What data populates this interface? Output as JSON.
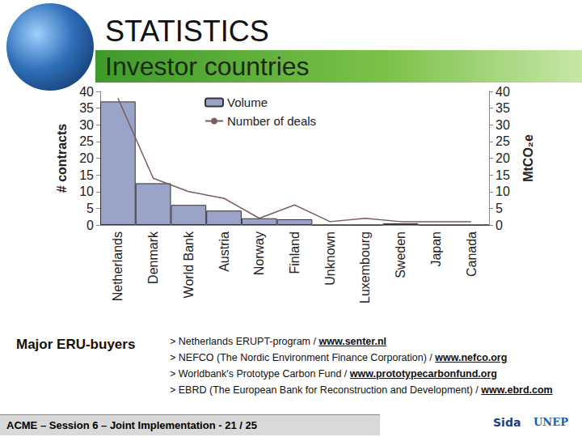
{
  "slide": {
    "heading": "STATISTICS",
    "subheading": "Investor countries",
    "buyers_title": "Major ERU-buyers",
    "buyers": [
      {
        "text": "> Netherlands ERUPT-program / ",
        "link": "www.senter.nl"
      },
      {
        "text": "> NEFCO (The Nordic Environment Finance Corporation) / ",
        "link": "www.nefco.org"
      },
      {
        "text": "> Worldbank's Prototype Carbon Fund / ",
        "link": "www.prototypecarbonfund.org"
      },
      {
        "text": "> EBRD (The European Bank for Reconstruction and Development) / ",
        "link": "www.ebrd.com"
      }
    ],
    "footer": "ACME – Session 6 – Joint Implementation - 21 / 25",
    "logos": [
      "Sida",
      "UNEP"
    ]
  },
  "chart_data": {
    "type": "bar",
    "categories": [
      "Netherlands",
      "Denmark",
      "World Bank",
      "Austria",
      "Norway",
      "Finland",
      "Unknown",
      "Luxembourg",
      "Sweden",
      "Japan",
      "Canada"
    ],
    "series": [
      {
        "name": "Volume",
        "type": "bar",
        "color": "#9aa4c8",
        "axis": "y2",
        "values": [
          37,
          12.5,
          6,
          4.3,
          2,
          1.7,
          0,
          0,
          0.5,
          0,
          0
        ]
      },
      {
        "name": "Number of deals",
        "type": "line",
        "color": "#7a5c5c",
        "values": [
          38,
          14,
          10,
          8,
          2,
          6,
          1,
          2,
          1,
          1,
          1
        ]
      }
    ],
    "ylabel": "# contracts",
    "y2label": "MtCO₂e",
    "ylim": [
      0,
      40
    ],
    "yticks": [
      0,
      5,
      10,
      15,
      20,
      25,
      30,
      35,
      40
    ],
    "y2lim": [
      0,
      40
    ],
    "y2ticks": [
      0,
      5,
      10,
      15,
      20,
      25,
      30,
      35,
      40
    ],
    "legend": "top",
    "grid": false
  }
}
